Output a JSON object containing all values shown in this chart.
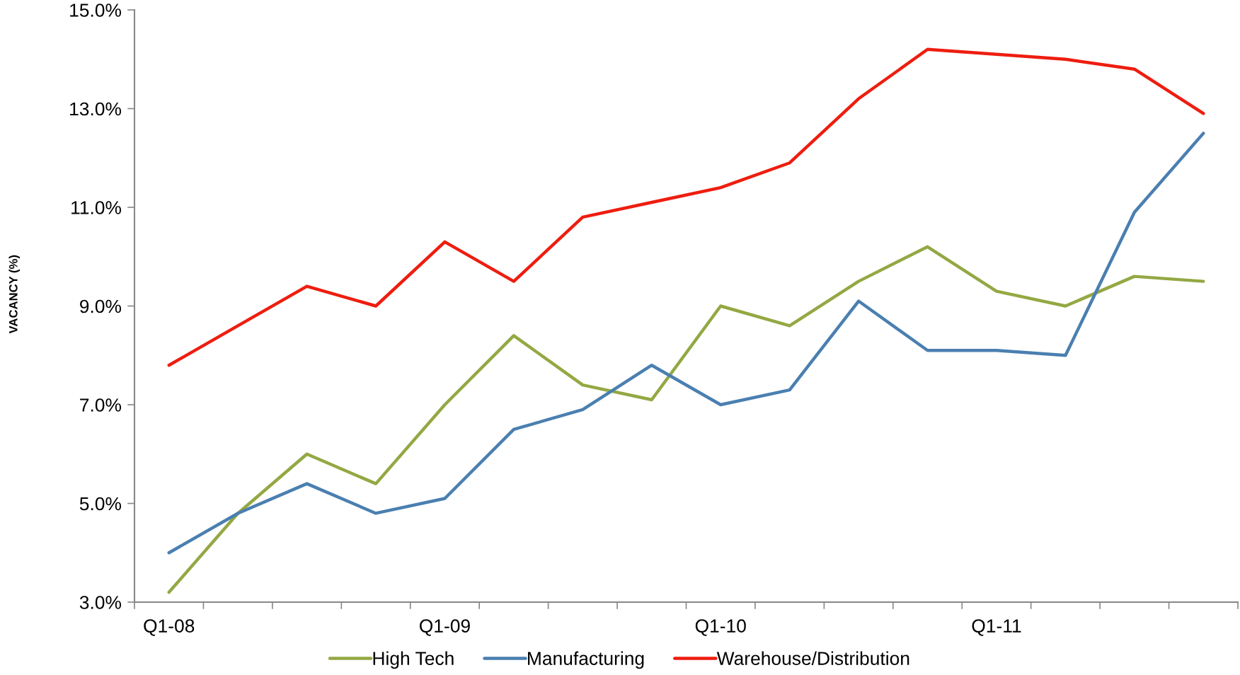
{
  "chart_data": {
    "type": "line",
    "ylabel": "VACANCY (%)",
    "categories": [
      "Q1-08",
      null,
      null,
      null,
      "Q1-09",
      null,
      null,
      null,
      "Q1-10",
      null,
      null,
      null,
      "Q1-11",
      null,
      null,
      null
    ],
    "series": [
      {
        "name": "High Tech",
        "color": "#93a843",
        "values": [
          3.2,
          4.8,
          6.0,
          5.4,
          7.0,
          8.4,
          7.4,
          7.1,
          9.0,
          8.6,
          9.5,
          10.2,
          9.3,
          9.0,
          9.6,
          9.5
        ]
      },
      {
        "name": "Manufacturing",
        "color": "#4a7fb0",
        "values": [
          4.0,
          4.8,
          5.4,
          4.8,
          5.1,
          6.5,
          6.9,
          7.8,
          7.0,
          7.3,
          9.1,
          8.1,
          8.1,
          8.0,
          10.9,
          12.5
        ]
      },
      {
        "name": "Warehouse/Distribution",
        "color": "#ee1d0f",
        "values": [
          7.8,
          8.6,
          9.4,
          9.0,
          10.3,
          9.5,
          10.8,
          11.1,
          11.4,
          11.9,
          13.2,
          14.2,
          14.1,
          14.0,
          13.8,
          12.9
        ]
      }
    ],
    "ylim": [
      3,
      15
    ],
    "yticks": [
      {
        "value": 3,
        "label": "3.0%"
      },
      {
        "value": 5,
        "label": "5.0%"
      },
      {
        "value": 7,
        "label": "7.0%"
      },
      {
        "value": 9,
        "label": "9.0%"
      },
      {
        "value": 11,
        "label": "11.0%"
      },
      {
        "value": 13,
        "label": "13.0%"
      },
      {
        "value": 15,
        "label": "15.0%"
      }
    ],
    "grid": false,
    "legend": "bottom",
    "marker": "none",
    "line_style": "solid"
  }
}
